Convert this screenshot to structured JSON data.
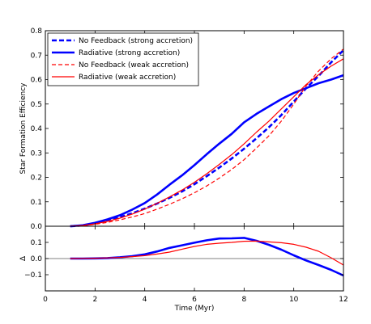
{
  "chart_data": [
    {
      "type": "line",
      "panel": "top",
      "xlabel": "",
      "ylabel": "Star Formation Efficiency",
      "xlim": [
        0,
        12
      ],
      "ylim": [
        0,
        0.8
      ],
      "yticks": [
        0.0,
        0.1,
        0.2,
        0.3,
        0.4,
        0.5,
        0.6,
        0.7,
        0.8
      ],
      "ytick_labels": [
        "0.0",
        "0.1",
        "0.2",
        "0.3",
        "0.4",
        "0.5",
        "0.6",
        "0.7",
        "0.8"
      ],
      "legend_placement": "top-left",
      "grid": false,
      "series": [
        {
          "name": "No Feedback (strong accretion)",
          "color": "#0000ff",
          "linestyle": "dashed",
          "linewidth": "thick",
          "x": [
            1.0,
            1.5,
            2,
            2.5,
            3,
            3.5,
            4,
            4.5,
            5,
            5.5,
            6,
            6.5,
            7,
            7.5,
            8,
            8.5,
            9,
            9.5,
            10,
            10.5,
            11,
            11.5,
            12
          ],
          "y": [
            0.0,
            0.003,
            0.012,
            0.024,
            0.037,
            0.053,
            0.072,
            0.093,
            0.116,
            0.142,
            0.172,
            0.205,
            0.24,
            0.277,
            0.317,
            0.36,
            0.405,
            0.455,
            0.51,
            0.565,
            0.615,
            0.67,
            0.72
          ]
        },
        {
          "name": "Radiative (strong accretion)",
          "color": "#0000ff",
          "linestyle": "solid",
          "linewidth": "thick",
          "x": [
            1.0,
            1.5,
            2,
            2.5,
            3,
            3.5,
            4,
            4.5,
            5,
            5.5,
            6,
            6.5,
            7,
            7.5,
            8,
            8.5,
            9,
            9.5,
            10,
            10.5,
            11,
            11.5,
            12
          ],
          "y": [
            0.0,
            0.004,
            0.014,
            0.028,
            0.045,
            0.068,
            0.095,
            0.13,
            0.17,
            0.208,
            0.25,
            0.295,
            0.338,
            0.378,
            0.425,
            0.46,
            0.49,
            0.52,
            0.545,
            0.565,
            0.585,
            0.6,
            0.618
          ]
        },
        {
          "name": "No Feedback (weak accretion)",
          "color": "#ff0000",
          "linestyle": "dashed",
          "linewidth": "normal",
          "x": [
            1.0,
            1.5,
            2,
            2.5,
            3,
            3.5,
            4,
            4.5,
            5,
            5.5,
            6,
            6.5,
            7,
            7.5,
            8,
            8.5,
            9,
            9.5,
            10,
            10.5,
            11,
            11.5,
            12
          ],
          "y": [
            0.0,
            0.002,
            0.008,
            0.016,
            0.026,
            0.038,
            0.052,
            0.07,
            0.09,
            0.112,
            0.137,
            0.165,
            0.197,
            0.232,
            0.272,
            0.32,
            0.37,
            0.43,
            0.5,
            0.575,
            0.635,
            0.685,
            0.725
          ]
        },
        {
          "name": "Radiative (weak accretion)",
          "color": "#ff0000",
          "linestyle": "solid",
          "linewidth": "normal",
          "x": [
            1.0,
            1.5,
            2,
            2.5,
            3,
            3.5,
            4,
            4.5,
            5,
            5.5,
            6,
            6.5,
            7,
            7.5,
            8,
            8.5,
            9,
            9.5,
            10,
            10.5,
            11,
            11.5,
            12
          ],
          "y": [
            0.0,
            0.003,
            0.01,
            0.02,
            0.033,
            0.05,
            0.07,
            0.094,
            0.12,
            0.148,
            0.18,
            0.215,
            0.253,
            0.293,
            0.337,
            0.385,
            0.43,
            0.48,
            0.53,
            0.58,
            0.62,
            0.655,
            0.685
          ]
        }
      ]
    },
    {
      "type": "line",
      "panel": "bottom",
      "xlabel": "Time (Myr)",
      "ylabel": "Δ",
      "xlim": [
        0,
        12
      ],
      "ylim": [
        -0.2,
        0.2
      ],
      "xticks": [
        0,
        2,
        4,
        6,
        8,
        10,
        12
      ],
      "xtick_labels": [
        "0",
        "2",
        "4",
        "6",
        "8",
        "10",
        "12"
      ],
      "yticks": [
        -0.1,
        0.0,
        0.1
      ],
      "ytick_labels": [
        "−0.1",
        "0.0",
        "0.1"
      ],
      "zero_line": true,
      "grid": false,
      "series": [
        {
          "name": "",
          "color": "#0000ff",
          "linestyle": "solid",
          "linewidth": "thick",
          "x": [
            1.0,
            1.5,
            2,
            2.5,
            3,
            3.5,
            4,
            4.5,
            5,
            5.5,
            6,
            6.5,
            7,
            7.5,
            8,
            8.5,
            9,
            9.5,
            10,
            10.5,
            11,
            11.5,
            12
          ],
          "y": [
            0.0,
            0.0,
            0.001,
            0.003,
            0.008,
            0.015,
            0.026,
            0.044,
            0.066,
            0.082,
            0.098,
            0.113,
            0.124,
            0.125,
            0.128,
            0.11,
            0.085,
            0.055,
            0.02,
            -0.012,
            -0.04,
            -0.07,
            -0.105
          ]
        },
        {
          "name": "",
          "color": "#ff0000",
          "linestyle": "solid",
          "linewidth": "normal",
          "x": [
            1.0,
            1.5,
            2,
            2.5,
            3,
            3.5,
            4,
            4.5,
            5,
            5.5,
            6,
            6.5,
            7,
            7.5,
            8,
            8.5,
            9,
            9.5,
            10,
            10.5,
            11,
            11.5,
            12
          ],
          "y": [
            0.0,
            0.001,
            0.002,
            0.004,
            0.007,
            0.012,
            0.018,
            0.028,
            0.04,
            0.058,
            0.075,
            0.088,
            0.095,
            0.1,
            0.107,
            0.108,
            0.103,
            0.098,
            0.088,
            0.07,
            0.045,
            0.005,
            -0.04
          ]
        }
      ]
    }
  ]
}
